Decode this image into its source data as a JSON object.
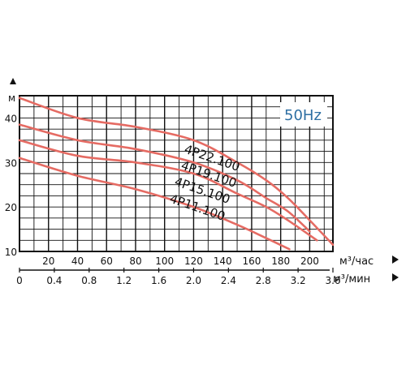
{
  "chart_data": {
    "type": "line",
    "title": "",
    "badge": "50Hz",
    "y_unit": "м",
    "x_unit": "м³/час",
    "x2_unit": "м³/мин",
    "ylim": [
      10,
      45
    ],
    "xlim": [
      0,
      216
    ],
    "y_ticks": [
      "10",
      "20",
      "30",
      "40"
    ],
    "x_ticks": [
      "20",
      "40",
      "60",
      "80",
      "100",
      "120",
      "140",
      "160",
      "180",
      "200"
    ],
    "x2_ticks": [
      "0",
      "0.4",
      "0.8",
      "1.2",
      "1.6",
      "2.0",
      "2.4",
      "2.8",
      "3.2",
      "3.6"
    ],
    "grid": true,
    "curve_color": "#e56b63",
    "badge_color": "#2e6fa3",
    "series": [
      {
        "name": "4P22.100",
        "x": [
          0,
          40,
          80,
          120,
          150,
          170,
          185,
          200,
          216
        ],
        "y": [
          44.5,
          40,
          38,
          35,
          30,
          26,
          22,
          17,
          11.5
        ]
      },
      {
        "name": "4P19.100",
        "x": [
          0,
          40,
          80,
          120,
          150,
          170,
          185,
          200
        ],
        "y": [
          38.5,
          35,
          33,
          30,
          26,
          22,
          19,
          14.5
        ]
      },
      {
        "name": "4P15.100",
        "x": [
          0,
          40,
          80,
          120,
          150,
          170,
          185,
          205
        ],
        "y": [
          35,
          31.5,
          30,
          27.5,
          23,
          20,
          17,
          12.5
        ]
      },
      {
        "name": "4P11.100",
        "x": [
          0,
          40,
          80,
          120,
          150,
          170,
          186
        ],
        "y": [
          31,
          27,
          24,
          20,
          16,
          13,
          10.5
        ]
      }
    ]
  }
}
